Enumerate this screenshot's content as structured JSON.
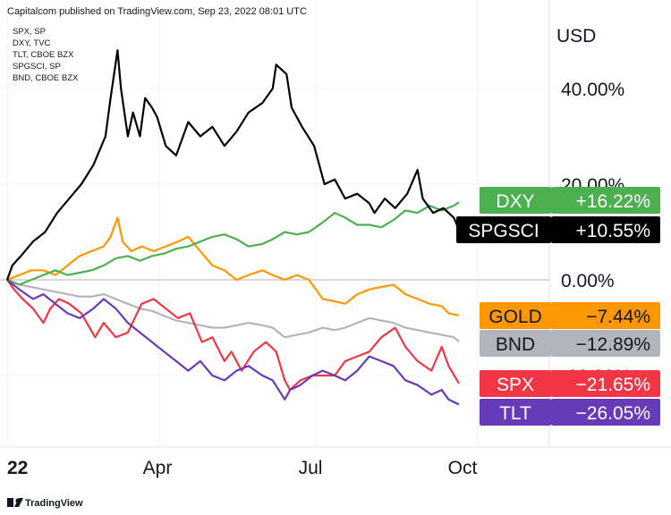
{
  "header": {
    "published": "Capitalcom published on TradingView.com, Sep 23, 2022 08:01 UTC",
    "symbols": [
      "SPX, SP",
      "DXY, TVC",
      "TLT, CBOE BZX",
      "SPGSCI, SP",
      "BND, CBOE BZX"
    ]
  },
  "footer": {
    "brand": "TradingView"
  },
  "colors": {
    "SPGSCI": "#000000",
    "DXY": "#4caf50",
    "GOLD": "#ff9800",
    "BND": "#b2b5be",
    "SPX": "#f23645",
    "TLT": "#673ab7",
    "grid": "#f0f3fa",
    "zero": "#b2b5be"
  },
  "chart_data": {
    "type": "line",
    "currency": "USD",
    "x_ticks": [
      "22",
      "Apr",
      "Jul",
      "Oct"
    ],
    "x_range": [
      "2022-01-01",
      "2022-10-31"
    ],
    "y_ticks": [
      "40.00%",
      "20.00%",
      "0.00%",
      "-20.00%"
    ],
    "ylim": [
      -34,
      56
    ],
    "legend": "right price scale",
    "series": [
      {
        "name": "SPGSCI",
        "last": "+10.55%",
        "points": [
          [
            "2022-01-03",
            0
          ],
          [
            "2022-01-06",
            3
          ],
          [
            "2022-01-11",
            5
          ],
          [
            "2022-01-18",
            8
          ],
          [
            "2022-01-25",
            10
          ],
          [
            "2022-02-01",
            14
          ],
          [
            "2022-02-08",
            17
          ],
          [
            "2022-02-15",
            20
          ],
          [
            "2022-02-22",
            24
          ],
          [
            "2022-03-01",
            30
          ],
          [
            "2022-03-04",
            38
          ],
          [
            "2022-03-08",
            48
          ],
          [
            "2022-03-10",
            40
          ],
          [
            "2022-03-14",
            30
          ],
          [
            "2022-03-17",
            35
          ],
          [
            "2022-03-21",
            30
          ],
          [
            "2022-03-24",
            38
          ],
          [
            "2022-03-28",
            36
          ],
          [
            "2022-03-31",
            34
          ],
          [
            "2022-04-05",
            28
          ],
          [
            "2022-04-11",
            26
          ],
          [
            "2022-04-18",
            33
          ],
          [
            "2022-04-25",
            30
          ],
          [
            "2022-05-02",
            32
          ],
          [
            "2022-05-09",
            28
          ],
          [
            "2022-05-16",
            31
          ],
          [
            "2022-05-23",
            35
          ],
          [
            "2022-05-31",
            37
          ],
          [
            "2022-06-06",
            40
          ],
          [
            "2022-06-08",
            45
          ],
          [
            "2022-06-14",
            43
          ],
          [
            "2022-06-17",
            36
          ],
          [
            "2022-06-23",
            32
          ],
          [
            "2022-06-30",
            28
          ],
          [
            "2022-07-06",
            20
          ],
          [
            "2022-07-12",
            21
          ],
          [
            "2022-07-18",
            17
          ],
          [
            "2022-07-25",
            18
          ],
          [
            "2022-08-01",
            16
          ],
          [
            "2022-08-04",
            14
          ],
          [
            "2022-08-10",
            17
          ],
          [
            "2022-08-16",
            15
          ],
          [
            "2022-08-23",
            18
          ],
          [
            "2022-08-29",
            23
          ],
          [
            "2022-09-01",
            17
          ],
          [
            "2022-09-07",
            14
          ],
          [
            "2022-09-13",
            15
          ],
          [
            "2022-09-19",
            13
          ],
          [
            "2022-09-22",
            10.55
          ]
        ]
      },
      {
        "name": "DXY",
        "last": "+16.22%",
        "points": [
          [
            "2022-01-03",
            0
          ],
          [
            "2022-01-10",
            -1
          ],
          [
            "2022-01-17",
            0
          ],
          [
            "2022-01-24",
            1
          ],
          [
            "2022-01-31",
            2
          ],
          [
            "2022-02-07",
            1
          ],
          [
            "2022-02-14",
            1.5
          ],
          [
            "2022-02-21",
            2
          ],
          [
            "2022-02-28",
            3
          ],
          [
            "2022-03-07",
            4.5
          ],
          [
            "2022-03-14",
            5
          ],
          [
            "2022-03-21",
            4
          ],
          [
            "2022-03-28",
            5
          ],
          [
            "2022-04-04",
            5.5
          ],
          [
            "2022-04-11",
            6.5
          ],
          [
            "2022-04-18",
            7
          ],
          [
            "2022-04-25",
            8
          ],
          [
            "2022-05-02",
            9
          ],
          [
            "2022-05-09",
            9.5
          ],
          [
            "2022-05-16",
            8.5
          ],
          [
            "2022-05-23",
            7
          ],
          [
            "2022-05-31",
            7.5
          ],
          [
            "2022-06-06",
            8.5
          ],
          [
            "2022-06-13",
            10
          ],
          [
            "2022-06-20",
            9.5
          ],
          [
            "2022-06-27",
            10
          ],
          [
            "2022-07-05",
            12
          ],
          [
            "2022-07-12",
            14
          ],
          [
            "2022-07-18",
            13
          ],
          [
            "2022-07-25",
            11.5
          ],
          [
            "2022-08-01",
            11.5
          ],
          [
            "2022-08-08",
            11
          ],
          [
            "2022-08-15",
            12.5
          ],
          [
            "2022-08-22",
            14.5
          ],
          [
            "2022-08-29",
            14
          ],
          [
            "2022-09-05",
            15.5
          ],
          [
            "2022-09-12",
            14.5
          ],
          [
            "2022-09-19",
            15.5
          ],
          [
            "2022-09-22",
            16.22
          ]
        ]
      },
      {
        "name": "GOLD",
        "last": "-7.44%",
        "points": [
          [
            "2022-01-03",
            0
          ],
          [
            "2022-01-10",
            1
          ],
          [
            "2022-01-17",
            2
          ],
          [
            "2022-01-24",
            2
          ],
          [
            "2022-01-31",
            1
          ],
          [
            "2022-02-07",
            3
          ],
          [
            "2022-02-14",
            5
          ],
          [
            "2022-02-21",
            6
          ],
          [
            "2022-02-28",
            7
          ],
          [
            "2022-03-04",
            9
          ],
          [
            "2022-03-08",
            13
          ],
          [
            "2022-03-11",
            8
          ],
          [
            "2022-03-16",
            6
          ],
          [
            "2022-03-22",
            7
          ],
          [
            "2022-03-29",
            6
          ],
          [
            "2022-04-05",
            7
          ],
          [
            "2022-04-12",
            8
          ],
          [
            "2022-04-18",
            9
          ],
          [
            "2022-04-25",
            6
          ],
          [
            "2022-05-02",
            3
          ],
          [
            "2022-05-09",
            2
          ],
          [
            "2022-05-16",
            0
          ],
          [
            "2022-05-23",
            1
          ],
          [
            "2022-05-31",
            2
          ],
          [
            "2022-06-06",
            1
          ],
          [
            "2022-06-13",
            0
          ],
          [
            "2022-06-20",
            1
          ],
          [
            "2022-06-27",
            0
          ],
          [
            "2022-07-05",
            -4
          ],
          [
            "2022-07-12",
            -4.5
          ],
          [
            "2022-07-18",
            -5
          ],
          [
            "2022-07-25",
            -3
          ],
          [
            "2022-08-01",
            -2
          ],
          [
            "2022-08-08",
            -1.5
          ],
          [
            "2022-08-15",
            -1
          ],
          [
            "2022-08-22",
            -3
          ],
          [
            "2022-08-29",
            -4
          ],
          [
            "2022-09-05",
            -5
          ],
          [
            "2022-09-12",
            -5.5
          ],
          [
            "2022-09-16",
            -7
          ],
          [
            "2022-09-22",
            -7.44
          ]
        ]
      },
      {
        "name": "BND",
        "last": "-12.89%",
        "points": [
          [
            "2022-01-03",
            0
          ],
          [
            "2022-01-10",
            -1
          ],
          [
            "2022-01-17",
            -1.5
          ],
          [
            "2022-01-24",
            -2
          ],
          [
            "2022-01-31",
            -2.5
          ],
          [
            "2022-02-07",
            -3
          ],
          [
            "2022-02-14",
            -3.5
          ],
          [
            "2022-02-21",
            -3.5
          ],
          [
            "2022-02-28",
            -3
          ],
          [
            "2022-03-07",
            -4
          ],
          [
            "2022-03-14",
            -5
          ],
          [
            "2022-03-21",
            -6
          ],
          [
            "2022-03-28",
            -6.5
          ],
          [
            "2022-04-04",
            -7.5
          ],
          [
            "2022-04-11",
            -8.5
          ],
          [
            "2022-04-18",
            -9
          ],
          [
            "2022-04-25",
            -9.5
          ],
          [
            "2022-05-02",
            -10
          ],
          [
            "2022-05-09",
            -10
          ],
          [
            "2022-05-16",
            -9.5
          ],
          [
            "2022-05-23",
            -9
          ],
          [
            "2022-05-31",
            -9.5
          ],
          [
            "2022-06-06",
            -10
          ],
          [
            "2022-06-13",
            -12
          ],
          [
            "2022-06-20",
            -11.5
          ],
          [
            "2022-06-27",
            -11
          ],
          [
            "2022-07-05",
            -10
          ],
          [
            "2022-07-12",
            -10.5
          ],
          [
            "2022-07-18",
            -10
          ],
          [
            "2022-07-25",
            -9
          ],
          [
            "2022-08-01",
            -8
          ],
          [
            "2022-08-08",
            -8.5
          ],
          [
            "2022-08-15",
            -9
          ],
          [
            "2022-08-22",
            -10
          ],
          [
            "2022-08-29",
            -10.5
          ],
          [
            "2022-09-05",
            -11
          ],
          [
            "2022-09-12",
            -11.5
          ],
          [
            "2022-09-19",
            -12
          ],
          [
            "2022-09-22",
            -12.89
          ]
        ]
      },
      {
        "name": "SPX",
        "last": "-21.65%",
        "points": [
          [
            "2022-01-03",
            0
          ],
          [
            "2022-01-07",
            -2
          ],
          [
            "2022-01-12",
            -4
          ],
          [
            "2022-01-18",
            -6
          ],
          [
            "2022-01-24",
            -9
          ],
          [
            "2022-01-28",
            -6
          ],
          [
            "2022-02-02",
            -4
          ],
          [
            "2022-02-08",
            -5
          ],
          [
            "2022-02-15",
            -7
          ],
          [
            "2022-02-23",
            -12
          ],
          [
            "2022-02-28",
            -9
          ],
          [
            "2022-03-07",
            -12
          ],
          [
            "2022-03-14",
            -11
          ],
          [
            "2022-03-22",
            -5
          ],
          [
            "2022-03-29",
            -4
          ],
          [
            "2022-04-05",
            -6
          ],
          [
            "2022-04-12",
            -8
          ],
          [
            "2022-04-19",
            -7
          ],
          [
            "2022-04-26",
            -13
          ],
          [
            "2022-05-02",
            -12
          ],
          [
            "2022-05-09",
            -17
          ],
          [
            "2022-05-13",
            -15
          ],
          [
            "2022-05-19",
            -19
          ],
          [
            "2022-05-26",
            -15
          ],
          [
            "2022-06-02",
            -13
          ],
          [
            "2022-06-08",
            -15
          ],
          [
            "2022-06-13",
            -21
          ],
          [
            "2022-06-16",
            -23
          ],
          [
            "2022-06-22",
            -21
          ],
          [
            "2022-06-29",
            -20
          ],
          [
            "2022-07-05",
            -20
          ],
          [
            "2022-07-12",
            -20
          ],
          [
            "2022-07-18",
            -17
          ],
          [
            "2022-07-25",
            -16
          ],
          [
            "2022-08-01",
            -15
          ],
          [
            "2022-08-08",
            -12
          ],
          [
            "2022-08-16",
            -10
          ],
          [
            "2022-08-22",
            -14
          ],
          [
            "2022-08-29",
            -17
          ],
          [
            "2022-09-06",
            -19
          ],
          [
            "2022-09-12",
            -14
          ],
          [
            "2022-09-16",
            -18
          ],
          [
            "2022-09-22",
            -21.65
          ]
        ]
      },
      {
        "name": "TLT",
        "last": "-26.05%",
        "points": [
          [
            "2022-01-03",
            0
          ],
          [
            "2022-01-10",
            -2
          ],
          [
            "2022-01-18",
            -4
          ],
          [
            "2022-01-24",
            -3
          ],
          [
            "2022-01-31",
            -5
          ],
          [
            "2022-02-07",
            -7
          ],
          [
            "2022-02-14",
            -8
          ],
          [
            "2022-02-22",
            -6
          ],
          [
            "2022-02-28",
            -4
          ],
          [
            "2022-03-07",
            -6
          ],
          [
            "2022-03-14",
            -9
          ],
          [
            "2022-03-21",
            -11
          ],
          [
            "2022-03-28",
            -13
          ],
          [
            "2022-04-04",
            -15
          ],
          [
            "2022-04-11",
            -17
          ],
          [
            "2022-04-18",
            -19
          ],
          [
            "2022-04-25",
            -17
          ],
          [
            "2022-05-02",
            -20
          ],
          [
            "2022-05-09",
            -21
          ],
          [
            "2022-05-16",
            -19
          ],
          [
            "2022-05-23",
            -18
          ],
          [
            "2022-05-31",
            -20
          ],
          [
            "2022-06-06",
            -21
          ],
          [
            "2022-06-13",
            -25
          ],
          [
            "2022-06-16",
            -23
          ],
          [
            "2022-06-22",
            -22
          ],
          [
            "2022-06-29",
            -20
          ],
          [
            "2022-07-05",
            -19
          ],
          [
            "2022-07-12",
            -20
          ],
          [
            "2022-07-18",
            -21
          ],
          [
            "2022-07-25",
            -19
          ],
          [
            "2022-08-01",
            -16
          ],
          [
            "2022-08-08",
            -17
          ],
          [
            "2022-08-15",
            -18
          ],
          [
            "2022-08-22",
            -21
          ],
          [
            "2022-08-29",
            -22
          ],
          [
            "2022-09-06",
            -24
          ],
          [
            "2022-09-12",
            -23
          ],
          [
            "2022-09-16",
            -25
          ],
          [
            "2022-09-22",
            -26.05
          ]
        ]
      }
    ],
    "badges": [
      {
        "name": "DXY",
        "value": "+16.22%",
        "y": 16.22
      },
      {
        "name": "SPGSCI",
        "value": "+10.55%",
        "y": 10.55
      },
      {
        "name": "GOLD",
        "value": "−7.44%",
        "y": -7.44
      },
      {
        "name": "BND",
        "value": "−12.89%",
        "y": -12.89
      },
      {
        "name": "SPX",
        "value": "−21.65%",
        "y": -21.65
      },
      {
        "name": "TLT",
        "value": "−26.05%",
        "y": -26.05
      }
    ]
  }
}
